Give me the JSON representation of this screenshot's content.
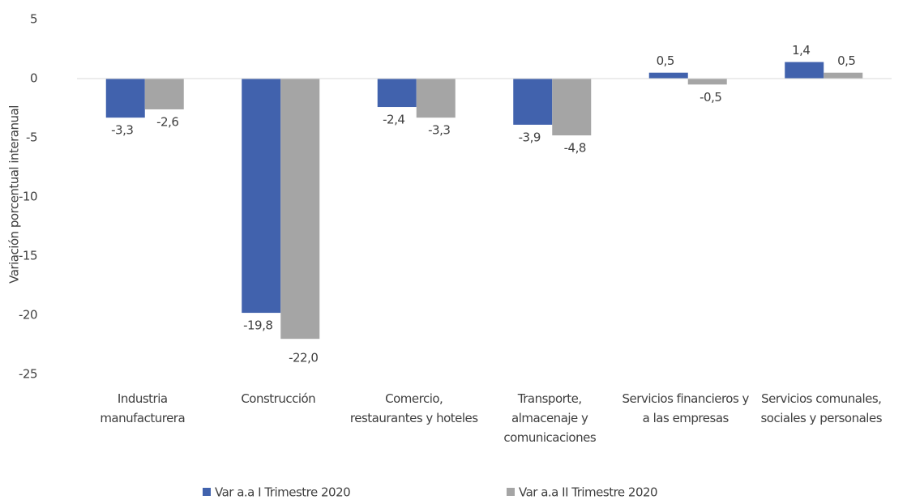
{
  "chart_data": {
    "type": "bar",
    "y_label": "Variación porcentual interanual",
    "categories": [
      "Industria manufacturera",
      "Construcción",
      "Comercio, restaurantes y hoteles",
      "Transporte, almacenaje y comunicaciones",
      "Servicios financieros y a las empresas",
      "Servicios comunales, sociales y personales"
    ],
    "series": [
      {
        "name": "Var a.a I Trimestre 2020",
        "color": "#4162ad",
        "values": [
          -3.3,
          -19.8,
          -2.4,
          -3.9,
          0.5,
          1.4
        ],
        "value_labels": [
          "-3,3",
          "-19,8",
          "-2,4",
          "-3,9",
          "0,5",
          "1,4"
        ]
      },
      {
        "name": "Var a.a II Trimestre 2020",
        "color": "#a5a5a5",
        "values": [
          -2.6,
          -22.0,
          -3.3,
          -4.8,
          -0.5,
          0.5
        ],
        "value_labels": [
          "-2,6",
          "-22,0",
          "-3,3",
          "-4,8",
          "-0,5",
          "0,5"
        ]
      }
    ],
    "ylim": [
      -25,
      5
    ],
    "yticks": [
      -25,
      -20,
      -15,
      -10,
      -5,
      0,
      5
    ],
    "grid": false,
    "legend": "bottom"
  }
}
